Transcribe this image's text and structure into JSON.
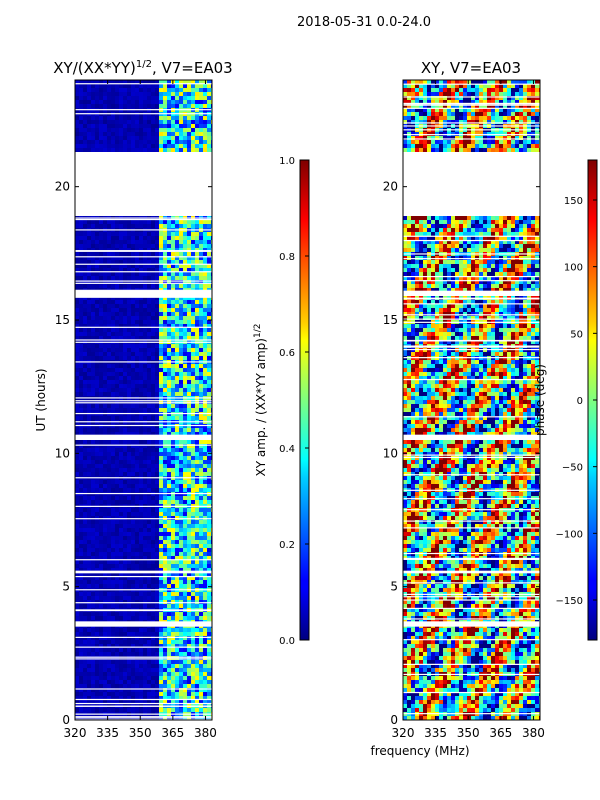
{
  "suptitle": "2018-05-31 0.0-24.0",
  "xlabel": "frequency (MHz)",
  "chart_data": [
    {
      "type": "heatmap",
      "title": "XY/(XX*YY)",
      "title_exponent": "1/2",
      "title_suffix": ", V7=EA03",
      "xlabel": "frequency (MHz)",
      "ylabel": "UT (hours)",
      "xlim": [
        320,
        383
      ],
      "ylim": [
        0,
        24
      ],
      "xticks": [
        320,
        335,
        350,
        365,
        380
      ],
      "yticks": [
        0,
        5,
        10,
        15,
        20
      ],
      "data_gap_hours": [
        [
          18.9,
          21.3
        ],
        [
          15.9,
          16.1
        ],
        [
          10.5,
          10.7
        ],
        [
          3.5,
          3.7
        ],
        [
          5.5,
          5.6
        ]
      ],
      "colorbar": {
        "label": "XY amp. / (XX*YY amp)",
        "label_exponent": "1/2",
        "vmin": 0.0,
        "vmax": 1.0,
        "ticks": [
          "0.0",
          "0.2",
          "0.4",
          "0.6",
          "0.8",
          "1.0"
        ],
        "colormap": "jet"
      }
    },
    {
      "type": "heatmap",
      "title": "XY, V7=EA03",
      "xlabel": "frequency (MHz)",
      "ylabel": "",
      "xlim": [
        320,
        383
      ],
      "ylim": [
        0,
        24
      ],
      "xticks": [
        320,
        335,
        350,
        365,
        380
      ],
      "yticks": [
        0,
        5,
        10,
        15,
        20
      ],
      "data_gap_hours": [
        [
          18.9,
          21.3
        ],
        [
          15.9,
          16.1
        ],
        [
          10.5,
          10.7
        ],
        [
          3.5,
          3.7
        ],
        [
          5.5,
          5.6
        ]
      ],
      "colorbar": {
        "label": "phase (deg)",
        "vmin": -180,
        "vmax": 180,
        "ticks": [
          "150",
          "100",
          "50",
          "0",
          "−50",
          "−100",
          "−150"
        ],
        "tick_values": [
          150,
          100,
          50,
          0,
          -50,
          -100,
          -150
        ],
        "colormap": "jet"
      }
    }
  ]
}
